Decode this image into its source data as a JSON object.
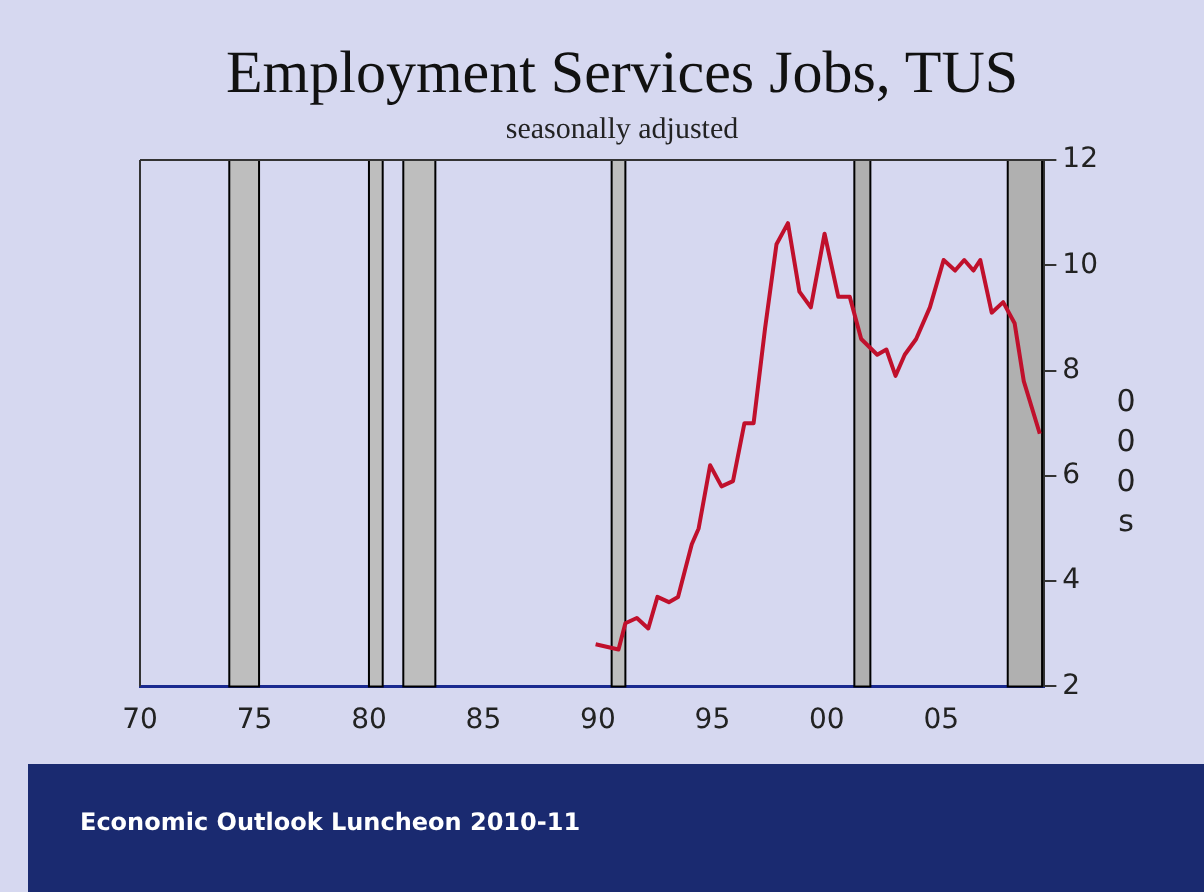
{
  "chart_data": {
    "type": "line",
    "title": "Employment Services Jobs, TUS",
    "subtitle": "seasonally adjusted",
    "ylabel": "000s",
    "x": [
      1989.9,
      1990.9,
      1991.2,
      1991.7,
      1992.2,
      1992.6,
      1993.1,
      1993.5,
      1993.8,
      1994.1,
      1994.4,
      1994.9,
      1995.4,
      1995.9,
      1996.4,
      1996.8,
      1997.3,
      1997.8,
      1998.3,
      1998.8,
      1999.3,
      1999.9,
      2000.5,
      2001.0,
      2001.5,
      2002.2,
      2002.6,
      2003.0,
      2003.4,
      2003.9,
      2004.5,
      2005.1,
      2005.6,
      2006.0,
      2006.4,
      2006.7,
      2007.2,
      2007.7,
      2008.2,
      2008.6,
      2009.3
    ],
    "series": [
      {
        "color": "#c0102c",
        "values": [
          2.8,
          2.7,
          3.2,
          3.3,
          3.1,
          3.7,
          3.6,
          3.7,
          4.2,
          4.7,
          5.0,
          6.2,
          5.8,
          5.9,
          7.0,
          7.0,
          8.8,
          10.4,
          10.8,
          9.5,
          9.2,
          10.6,
          9.4,
          9.4,
          8.6,
          8.3,
          8.4,
          7.9,
          8.3,
          8.6,
          9.2,
          10.1,
          9.9,
          10.1,
          9.9,
          10.1,
          9.1,
          9.3,
          8.9,
          7.8,
          6.8
        ]
      }
    ],
    "xlim": [
      1970,
      2009.5
    ],
    "xticks": [
      {
        "value": 1970,
        "label": "70"
      },
      {
        "value": 1975,
        "label": "75"
      },
      {
        "value": 1980,
        "label": "80"
      },
      {
        "value": 1985,
        "label": "85"
      },
      {
        "value": 1990,
        "label": "90"
      },
      {
        "value": 1995,
        "label": "95"
      },
      {
        "value": 2000,
        "label": "00"
      },
      {
        "value": 2005,
        "label": "05"
      }
    ],
    "ylim": [
      2,
      12
    ],
    "yticks": [
      2,
      4,
      6,
      8,
      10,
      12
    ],
    "bands": [
      {
        "axis": "x",
        "from": 1973.9,
        "to": 1975.2,
        "color": "#bebebe"
      },
      {
        "axis": "x",
        "from": 1980.0,
        "to": 1980.6,
        "color": "#bebebe"
      },
      {
        "axis": "x",
        "from": 1981.5,
        "to": 1982.9,
        "color": "#bebebe"
      },
      {
        "axis": "x",
        "from": 1990.6,
        "to": 1991.2,
        "color": "#bebebe"
      },
      {
        "axis": "x",
        "from": 2001.2,
        "to": 2001.9,
        "color": "#b0b0b0"
      },
      {
        "axis": "x",
        "from": 2007.9,
        "to": 2009.4,
        "color": "#b0b0b0"
      }
    ],
    "annotations": [
      "Economic Outlook Luncheon 2010-11"
    ],
    "grid": false,
    "legend": false,
    "marker": "none",
    "line_style": "solid"
  }
}
